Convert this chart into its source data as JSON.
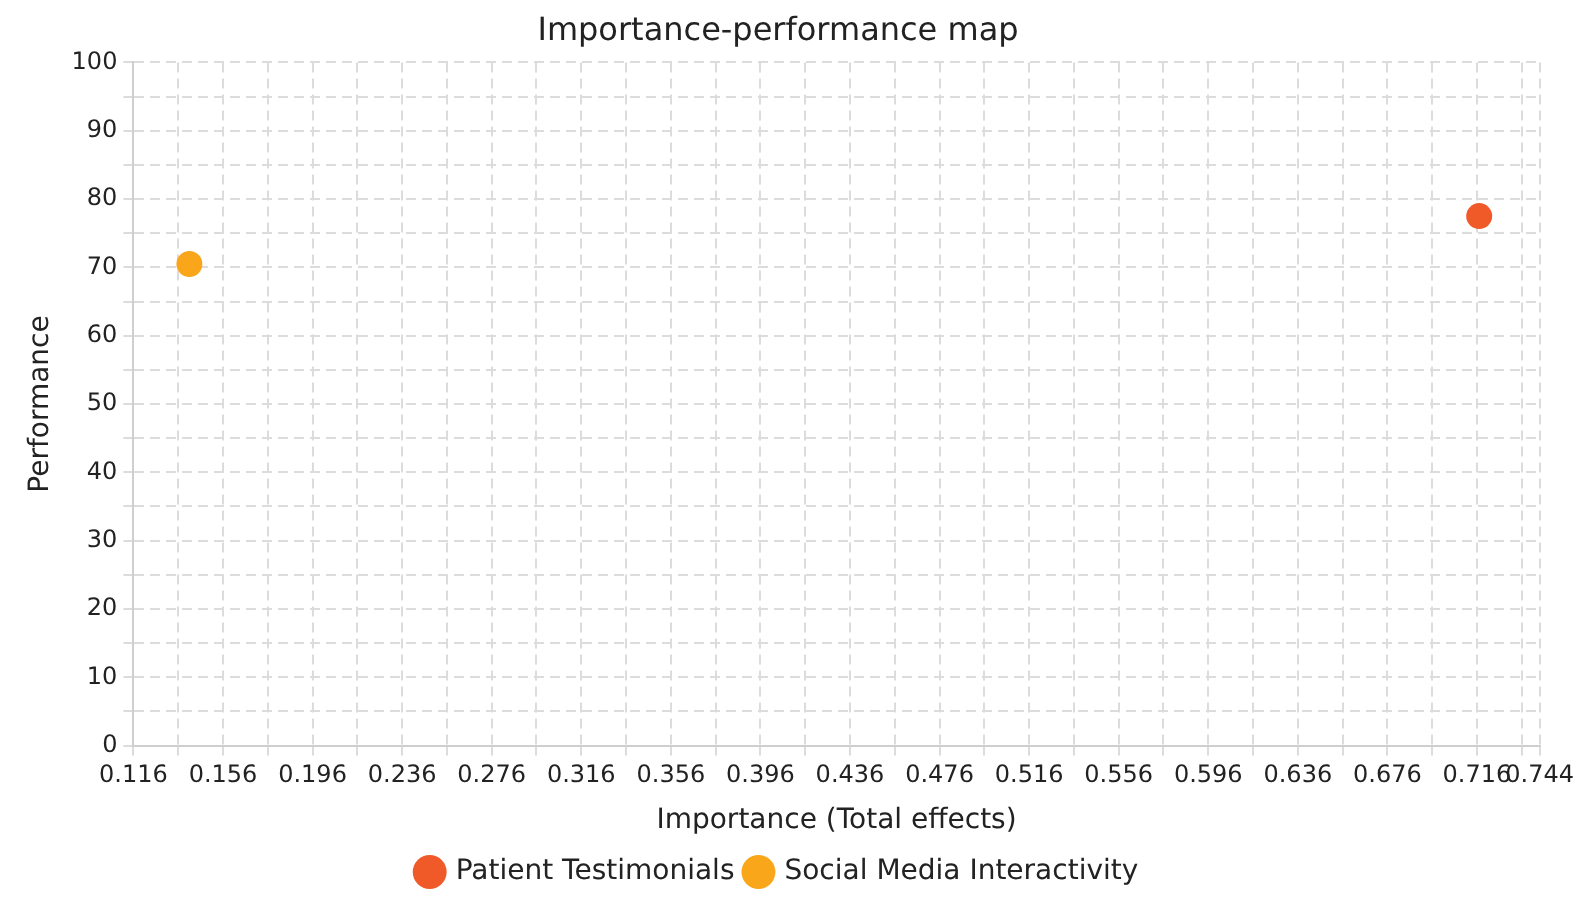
{
  "chart_data": {
    "type": "scatter",
    "title": "Importance-performance map",
    "xlabel": "Importance (Total effects)",
    "ylabel": "Performance",
    "series": [
      {
        "name": "Patient Testimonials",
        "color": "#f05a28",
        "x": [
          0.717
        ],
        "values": [
          77.5
        ]
      },
      {
        "name": "Social Media Interactivity",
        "color": "#faa61a",
        "x": [
          0.141
        ],
        "values": [
          70.5
        ]
      }
    ],
    "xlim": [
      0.116,
      0.744
    ],
    "xticks": [
      0.116,
      {
        "value": 0.136,
        "label": null
      },
      0.156,
      {
        "value": 0.176,
        "label": null
      },
      0.196,
      {
        "value": 0.216,
        "label": null
      },
      0.236,
      {
        "value": 0.256,
        "label": null
      },
      0.276,
      {
        "value": 0.296,
        "label": null
      },
      0.316,
      {
        "value": 0.336,
        "label": null
      },
      0.356,
      {
        "value": 0.376,
        "label": null
      },
      0.396,
      {
        "value": 0.416,
        "label": null
      },
      0.436,
      {
        "value": 0.456,
        "label": null
      },
      0.476,
      {
        "value": 0.496,
        "label": null
      },
      0.516,
      {
        "value": 0.536,
        "label": null
      },
      0.556,
      {
        "value": 0.576,
        "label": null
      },
      0.596,
      {
        "value": 0.616,
        "label": null
      },
      0.636,
      {
        "value": 0.656,
        "label": null
      },
      0.676,
      {
        "value": 0.696,
        "label": null
      },
      0.716,
      {
        "value": 0.736,
        "label": null
      },
      0.744
    ],
    "ylim": [
      0,
      100
    ],
    "yticks": [
      0,
      {
        "value": 5,
        "label": null
      },
      10,
      {
        "value": 15,
        "label": null
      },
      20,
      {
        "value": 25,
        "label": null
      },
      30,
      {
        "value": 35,
        "label": null
      },
      40,
      {
        "value": 45,
        "label": null
      },
      50,
      {
        "value": 55,
        "label": null
      },
      60,
      {
        "value": 65,
        "label": null
      },
      70,
      {
        "value": 75,
        "label": null
      },
      80,
      {
        "value": 85,
        "label": null
      },
      90,
      {
        "value": 95,
        "label": null
      },
      100
    ],
    "grid": true,
    "legend": "bottom",
    "marker": "circle"
  }
}
